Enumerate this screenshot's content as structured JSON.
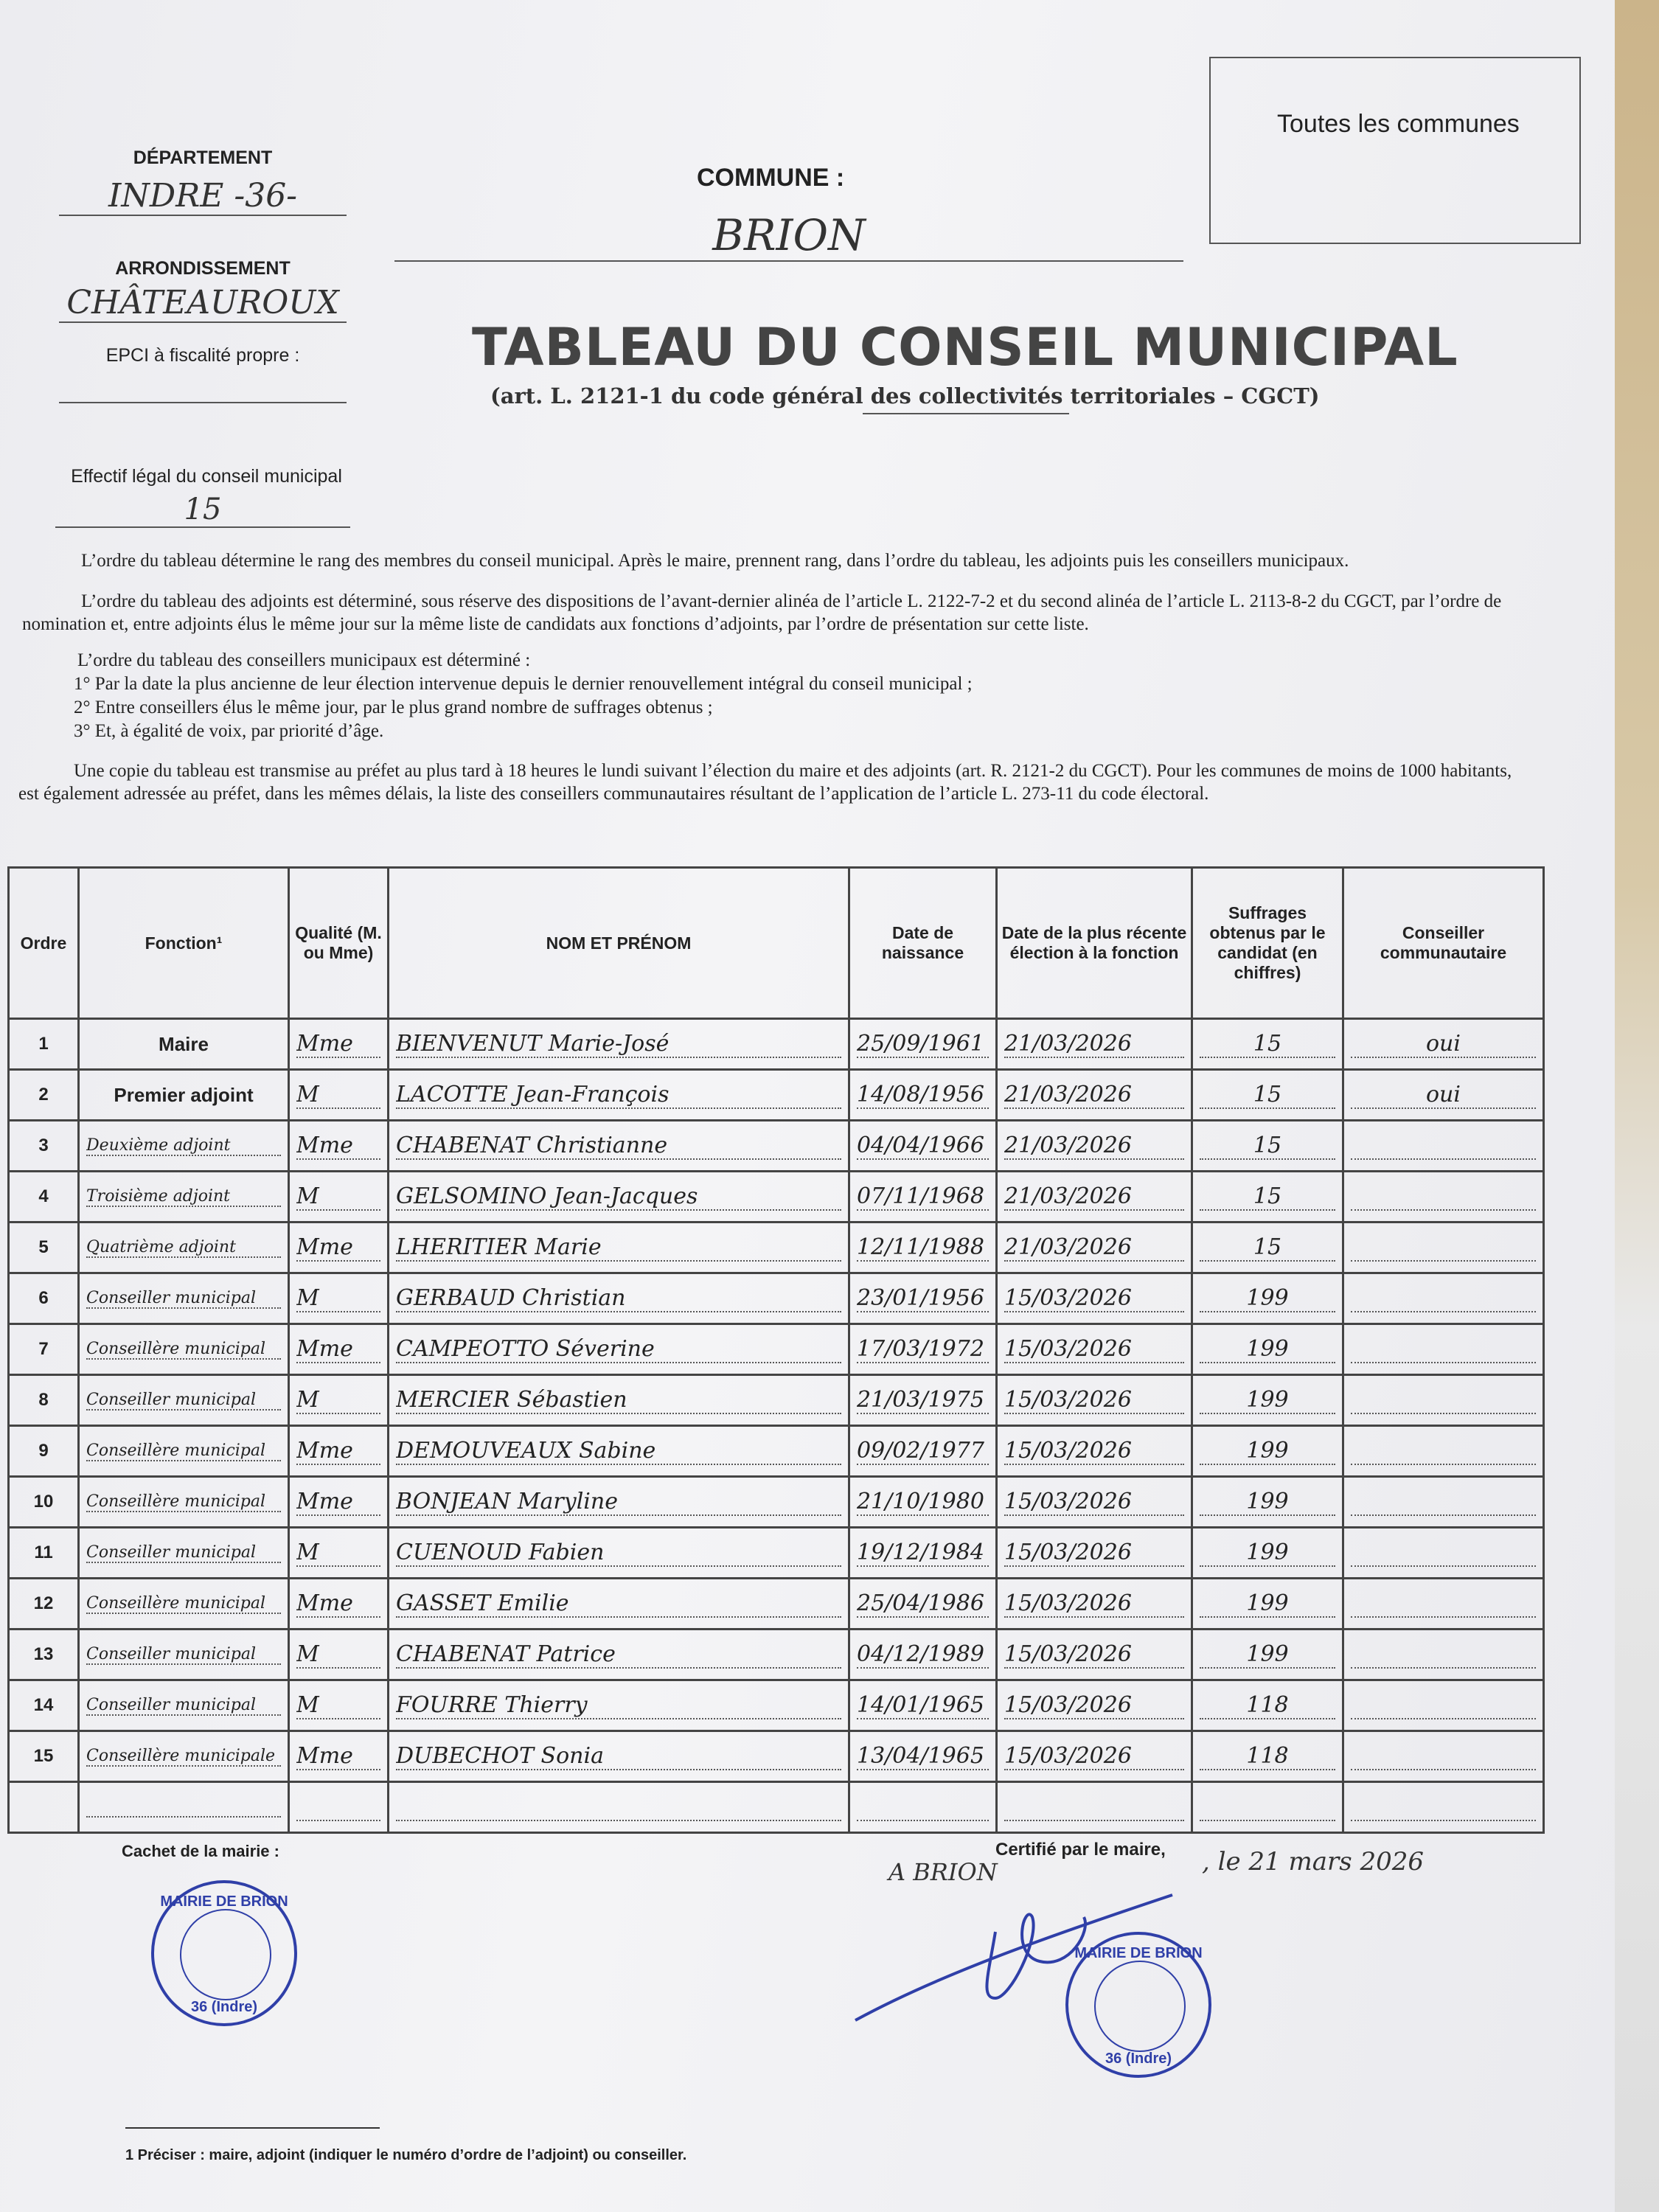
{
  "header": {
    "departement_label": "DÉPARTEMENT",
    "departement_value": "INDRE -36-",
    "arrondissement_label": "ARRONDISSEMENT",
    "arrondissement_value": "CHÂTEAUROUX",
    "epci_label": "EPCI à fiscalité propre :",
    "effectif_label": "Effectif légal du conseil municipal",
    "effectif_value": "15",
    "commune_label": "COMMUNE :",
    "commune_value": "BRION",
    "box_text": "Toutes les communes",
    "title": "TABLEAU DU CONSEIL MUNICIPAL",
    "subtitle": "(art. L. 2121-1 du code général des collectivités territoriales – CGCT)"
  },
  "paragraphs": [
    "L’ordre du tableau détermine le rang des membres du conseil municipal. Après le maire, prennent rang, dans l’ordre du tableau, les adjoints puis les conseillers municipaux.",
    "L’ordre du tableau des adjoints est déterminé, sous réserve des dispositions de l’avant-dernier alinéa de l’article L. 2122-7-2 et du second alinéa de l’article L. 2113-8-2 du CGCT, par l’ordre de nomination et, entre adjoints élus le même jour sur la même liste de candidats aux fonctions d’adjoints, par l’ordre de présentation sur cette liste.",
    "L’ordre du tableau des conseillers municipaux est déterminé :",
    "1° Par la date la plus ancienne de leur élection intervenue depuis le dernier renouvellement intégral du conseil municipal ;",
    "2° Entre conseillers élus le même jour, par le plus grand nombre de suffrages obtenus ;",
    "3° Et, à égalité de voix, par priorité d’âge.",
    "Une copie du tableau est transmise au préfet au plus tard à 18 heures le lundi suivant l’élection du maire et des adjoints (art. R. 2121-2 du CGCT). Pour les communes de moins de 1000 habitants, est également adressée au préfet, dans les mêmes délais, la liste des conseillers communautaires résultant de l’application de l’article L. 273-11 du code électoral."
  ],
  "table": {
    "columns": [
      "Ordre",
      "Fonction¹",
      "Qualité (M. ou Mme)",
      "NOM ET PRÉNOM",
      "Date de naissance",
      "Date de la plus récente élection à la fonction",
      "Suffrages obtenus par le candidat (en chiffres)",
      "Conseiller communautaire"
    ],
    "rows": [
      {
        "ordre": "1",
        "fonction": "Maire",
        "qualite": "Mme",
        "nom": "BIENVENUT Marie-José",
        "naissance": "25/09/1961",
        "election": "21/03/2026",
        "suffrages": "15",
        "communautaire": "oui"
      },
      {
        "ordre": "2",
        "fonction": "Premier adjoint",
        "qualite": "M",
        "nom": "LACOTTE Jean-François",
        "naissance": "14/08/1956",
        "election": "21/03/2026",
        "suffrages": "15",
        "communautaire": "oui"
      },
      {
        "ordre": "3",
        "fonction": "Deuxième adjoint",
        "qualite": "Mme",
        "nom": "CHABENAT Christianne",
        "naissance": "04/04/1966",
        "election": "21/03/2026",
        "suffrages": "15",
        "communautaire": ""
      },
      {
        "ordre": "4",
        "fonction": "Troisième adjoint",
        "qualite": "M",
        "nom": "GELSOMINO Jean-Jacques",
        "naissance": "07/11/1968",
        "election": "21/03/2026",
        "suffrages": "15",
        "communautaire": ""
      },
      {
        "ordre": "5",
        "fonction": "Quatrième adjoint",
        "qualite": "Mme",
        "nom": "LHERITIER Marie",
        "naissance": "12/11/1988",
        "election": "21/03/2026",
        "suffrages": "15",
        "communautaire": ""
      },
      {
        "ordre": "6",
        "fonction": "Conseiller municipal",
        "qualite": "M",
        "nom": "GERBAUD Christian",
        "naissance": "23/01/1956",
        "election": "15/03/2026",
        "suffrages": "199",
        "communautaire": ""
      },
      {
        "ordre": "7",
        "fonction": "Conseillère municipal",
        "qualite": "Mme",
        "nom": "CAMPEOTTO Séverine",
        "naissance": "17/03/1972",
        "election": "15/03/2026",
        "suffrages": "199",
        "communautaire": ""
      },
      {
        "ordre": "8",
        "fonction": "Conseiller municipal",
        "qualite": "M",
        "nom": "MERCIER Sébastien",
        "naissance": "21/03/1975",
        "election": "15/03/2026",
        "suffrages": "199",
        "communautaire": ""
      },
      {
        "ordre": "9",
        "fonction": "Conseillère municipal",
        "qualite": "Mme",
        "nom": "DEMOUVEAUX Sabine",
        "naissance": "09/02/1977",
        "election": "15/03/2026",
        "suffrages": "199",
        "communautaire": ""
      },
      {
        "ordre": "10",
        "fonction": "Conseillère municipal",
        "qualite": "Mme",
        "nom": "BONJEAN Maryline",
        "naissance": "21/10/1980",
        "election": "15/03/2026",
        "suffrages": "199",
        "communautaire": ""
      },
      {
        "ordre": "11",
        "fonction": "Conseiller municipal",
        "qualite": "M",
        "nom": "CUENOUD Fabien",
        "naissance": "19/12/1984",
        "election": "15/03/2026",
        "suffrages": "199",
        "communautaire": ""
      },
      {
        "ordre": "12",
        "fonction": "Conseillère municipal",
        "qualite": "Mme",
        "nom": "GASSET Emilie",
        "naissance": "25/04/1986",
        "election": "15/03/2026",
        "suffrages": "199",
        "communautaire": ""
      },
      {
        "ordre": "13",
        "fonction": "Conseiller municipal",
        "qualite": "M",
        "nom": "CHABENAT Patrice",
        "naissance": "04/12/1989",
        "election": "15/03/2026",
        "suffrages": "199",
        "communautaire": ""
      },
      {
        "ordre": "14",
        "fonction": "Conseiller municipal",
        "qualite": "M",
        "nom": "FOURRE Thierry",
        "naissance": "14/01/1965",
        "election": "15/03/2026",
        "suffrages": "118",
        "communautaire": ""
      },
      {
        "ordre": "15",
        "fonction": "Conseillère municipale",
        "qualite": "Mme",
        "nom": "DUBECHOT Sonia",
        "naissance": "13/04/1965",
        "election": "15/03/2026",
        "suffrages": "118",
        "communautaire": ""
      },
      {
        "ordre": "",
        "fonction": "",
        "qualite": "",
        "nom": "",
        "naissance": "",
        "election": "",
        "suffrages": "",
        "communautaire": ""
      }
    ]
  },
  "footer": {
    "cachet_label": "Cachet de la mairie :",
    "certifie_label": "Certifié par le maire,",
    "lieu": "A BRION",
    "date": ", le 21 mars 2026",
    "stamp_top": "MAIRIE DE BRION",
    "stamp_bottom": "36 (Indre)",
    "footnote": "1 Préciser : maire, adjoint (indiquer le numéro d’ordre de l’adjoint) ou conseiller."
  },
  "colors": {
    "ink": "#333333",
    "stamp": "#2f3fa8",
    "paper": "#f0f0f3"
  }
}
